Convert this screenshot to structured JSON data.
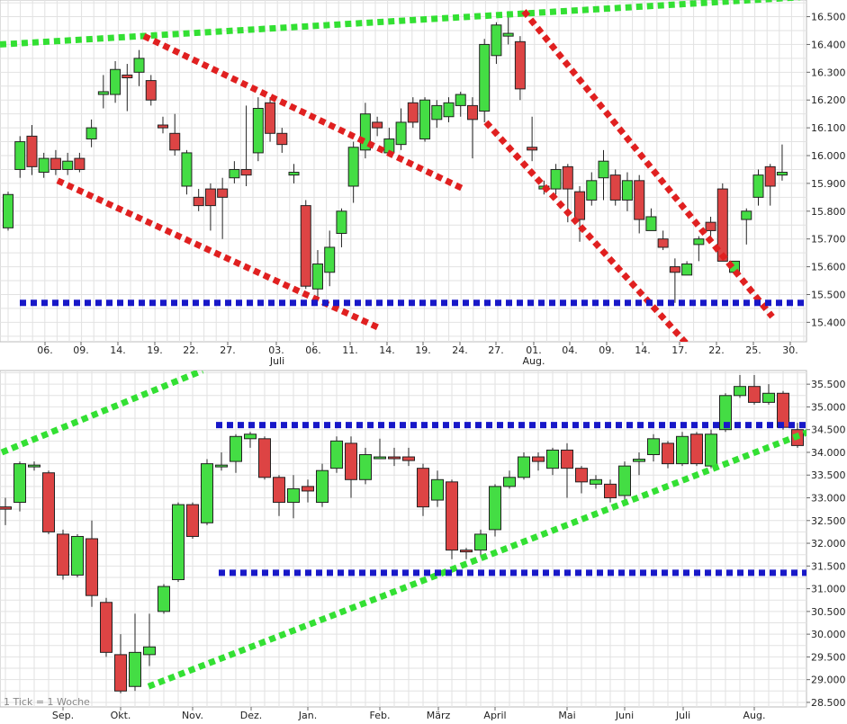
{
  "chart_data": [
    {
      "type": "candlestick",
      "title": "",
      "y_ticks": [
        "16.500",
        "16.400",
        "16.300",
        "16.200",
        "16.100",
        "16.000",
        "15.900",
        "15.800",
        "15.700",
        "15.600",
        "15.500",
        "15.400"
      ],
      "ylim": [
        15.33,
        16.56
      ],
      "x_labels": [
        "06.",
        "09.",
        "14.",
        "19.",
        "22.",
        "27.",
        "03.",
        "06.",
        "11.",
        "14.",
        "19.",
        "24.",
        "27.",
        "01.",
        "04.",
        "09.",
        "14.",
        "17.",
        "22.",
        "25.",
        "30."
      ],
      "month_labels": [
        "Juli",
        "Aug."
      ],
      "candles": [
        {
          "o": 15.74,
          "c": 15.86,
          "h": 15.87,
          "l": 15.73
        },
        {
          "o": 15.95,
          "c": 16.05,
          "h": 16.07,
          "l": 15.92
        },
        {
          "o": 16.07,
          "c": 15.96,
          "h": 16.11,
          "l": 15.93
        },
        {
          "o": 15.94,
          "c": 15.99,
          "h": 16.01,
          "l": 15.92
        },
        {
          "o": 15.99,
          "c": 15.95,
          "h": 16.02,
          "l": 15.93
        },
        {
          "o": 15.95,
          "c": 15.98,
          "h": 16.01,
          "l": 15.93
        },
        {
          "o": 15.99,
          "c": 15.95,
          "h": 16.01,
          "l": 15.94
        },
        {
          "o": 16.06,
          "c": 16.1,
          "h": 16.13,
          "l": 16.03
        },
        {
          "o": 16.22,
          "c": 16.23,
          "h": 16.29,
          "l": 16.17
        },
        {
          "o": 16.22,
          "c": 16.31,
          "h": 16.34,
          "l": 16.19
        },
        {
          "o": 16.29,
          "c": 16.28,
          "h": 16.33,
          "l": 16.16
        },
        {
          "o": 16.3,
          "c": 16.35,
          "h": 16.38,
          "l": 16.25
        },
        {
          "o": 16.27,
          "c": 16.2,
          "h": 16.29,
          "l": 16.18
        },
        {
          "o": 16.11,
          "c": 16.1,
          "h": 16.14,
          "l": 16.08
        },
        {
          "o": 16.08,
          "c": 16.02,
          "h": 16.15,
          "l": 16.0
        },
        {
          "o": 15.89,
          "c": 16.01,
          "h": 16.02,
          "l": 15.86
        },
        {
          "o": 15.85,
          "c": 15.82,
          "h": 15.88,
          "l": 15.8
        },
        {
          "o": 15.88,
          "c": 15.82,
          "h": 15.9,
          "l": 15.73
        },
        {
          "o": 15.88,
          "c": 15.85,
          "h": 15.92,
          "l": 15.7
        },
        {
          "o": 15.92,
          "c": 15.95,
          "h": 15.98,
          "l": 15.9
        },
        {
          "o": 15.95,
          "c": 15.93,
          "h": 16.18,
          "l": 15.89
        },
        {
          "o": 16.01,
          "c": 16.17,
          "h": 16.21,
          "l": 15.98
        },
        {
          "o": 16.19,
          "c": 16.08,
          "h": 16.21,
          "l": 16.05
        },
        {
          "o": 16.08,
          "c": 16.04,
          "h": 16.1,
          "l": 16.01
        },
        {
          "o": 15.93,
          "c": 15.94,
          "h": 15.97,
          "l": 15.9
        },
        {
          "o": 15.82,
          "c": 15.53,
          "h": 15.84,
          "l": 15.52
        },
        {
          "o": 15.52,
          "c": 15.61,
          "h": 15.66,
          "l": 15.48
        },
        {
          "o": 15.58,
          "c": 15.67,
          "h": 15.73,
          "l": 15.53
        },
        {
          "o": 15.72,
          "c": 15.8,
          "h": 15.81,
          "l": 15.67
        },
        {
          "o": 15.89,
          "c": 16.03,
          "h": 16.05,
          "l": 15.83
        },
        {
          "o": 16.02,
          "c": 16.15,
          "h": 16.19,
          "l": 15.99
        },
        {
          "o": 16.12,
          "c": 16.1,
          "h": 16.14,
          "l": 16.07
        },
        {
          "o": 16.01,
          "c": 16.06,
          "h": 16.1,
          "l": 16.0
        },
        {
          "o": 16.04,
          "c": 16.12,
          "h": 16.17,
          "l": 16.02
        },
        {
          "o": 16.19,
          "c": 16.12,
          "h": 16.21,
          "l": 16.1
        },
        {
          "o": 16.06,
          "c": 16.2,
          "h": 16.21,
          "l": 16.05
        },
        {
          "o": 16.13,
          "c": 16.18,
          "h": 16.2,
          "l": 16.1
        },
        {
          "o": 16.14,
          "c": 16.19,
          "h": 16.21,
          "l": 16.12
        },
        {
          "o": 16.18,
          "c": 16.22,
          "h": 16.23,
          "l": 16.14
        },
        {
          "o": 16.18,
          "c": 16.13,
          "h": 16.21,
          "l": 15.99
        },
        {
          "o": 16.16,
          "c": 16.4,
          "h": 16.42,
          "l": 16.12
        },
        {
          "o": 16.36,
          "c": 16.47,
          "h": 16.48,
          "l": 16.33
        },
        {
          "o": 16.43,
          "c": 16.44,
          "h": 16.52,
          "l": 16.4
        },
        {
          "o": 16.41,
          "c": 16.24,
          "h": 16.43,
          "l": 16.2
        },
        {
          "o": 16.03,
          "c": 16.02,
          "h": 16.14,
          "l": 15.98
        },
        {
          "o": 15.88,
          "c": 15.89,
          "h": 15.91,
          "l": 15.86
        },
        {
          "o": 15.88,
          "c": 15.95,
          "h": 15.97,
          "l": 15.86
        },
        {
          "o": 15.96,
          "c": 15.88,
          "h": 15.97,
          "l": 15.76
        },
        {
          "o": 15.87,
          "c": 15.77,
          "h": 15.89,
          "l": 15.69
        },
        {
          "o": 15.84,
          "c": 15.91,
          "h": 15.94,
          "l": 15.82
        },
        {
          "o": 15.92,
          "c": 15.98,
          "h": 16.02,
          "l": 15.84
        },
        {
          "o": 15.93,
          "c": 15.84,
          "h": 15.95,
          "l": 15.82
        },
        {
          "o": 15.84,
          "c": 15.91,
          "h": 15.94,
          "l": 15.8
        },
        {
          "o": 15.91,
          "c": 15.77,
          "h": 15.93,
          "l": 15.72
        },
        {
          "o": 15.73,
          "c": 15.78,
          "h": 15.81,
          "l": 15.73
        },
        {
          "o": 15.7,
          "c": 15.67,
          "h": 15.73,
          "l": 15.66
        },
        {
          "o": 15.6,
          "c": 15.58,
          "h": 15.63,
          "l": 15.47
        },
        {
          "o": 15.57,
          "c": 15.61,
          "h": 15.62,
          "l": 15.57
        },
        {
          "o": 15.68,
          "c": 15.7,
          "h": 15.71,
          "l": 15.62
        },
        {
          "o": 15.76,
          "c": 15.73,
          "h": 15.78,
          "l": 15.71
        },
        {
          "o": 15.88,
          "c": 15.62,
          "h": 15.9,
          "l": 15.62
        },
        {
          "o": 15.58,
          "c": 15.62,
          "h": 15.62,
          "l": 15.57
        },
        {
          "o": 15.77,
          "c": 15.8,
          "h": 15.81,
          "l": 15.68
        },
        {
          "o": 15.85,
          "c": 15.93,
          "h": 15.95,
          "l": 15.82
        },
        {
          "o": 15.96,
          "c": 15.89,
          "h": 15.97,
          "l": 15.82
        },
        {
          "o": 15.93,
          "c": 15.94,
          "h": 16.04,
          "l": 15.91
        }
      ],
      "trendlines": [
        {
          "color": "#33e033",
          "x1": 0,
          "y1": 16.4,
          "x2": 889,
          "y2": 16.57
        },
        {
          "color": "#e02020",
          "x1": 160,
          "y1": 16.43,
          "x2": 515,
          "y2": 15.88
        },
        {
          "color": "#e02020",
          "x1": 64,
          "y1": 15.91,
          "x2": 421,
          "y2": 15.38
        },
        {
          "color": "#e02020",
          "x1": 582,
          "y1": 16.52,
          "x2": 858,
          "y2": 15.42
        },
        {
          "color": "#e02020",
          "x1": 540,
          "y1": 16.12,
          "x2": 772,
          "y2": 15.29
        },
        {
          "color": "#1818c8",
          "x1": 22,
          "y1": 15.47,
          "x2": 898,
          "y2": 15.47
        }
      ]
    },
    {
      "type": "candlestick",
      "title": "",
      "y_ticks": [
        "35.500",
        "35.000",
        "34.500",
        "34.000",
        "33.500",
        "33.000",
        "32.500",
        "32.000",
        "31.500",
        "31.000",
        "30.500",
        "30.000",
        "29.500",
        "29.000",
        "28.500"
      ],
      "ylim": [
        28.4,
        35.8
      ],
      "x_labels": [
        "Sep.",
        "Okt.",
        "Nov.",
        "Dez.",
        "Jan.",
        "Feb.",
        "März",
        "April",
        "Mai",
        "Juni",
        "Juli",
        "Aug."
      ],
      "note": "1 Tick = 1 Woche",
      "candles": [
        {
          "o": 32.8,
          "c": 32.75,
          "h": 33.0,
          "l": 32.4
        },
        {
          "o": 32.9,
          "c": 33.75,
          "h": 33.8,
          "l": 32.7
        },
        {
          "o": 33.7,
          "c": 33.72,
          "h": 33.8,
          "l": 33.6
        },
        {
          "o": 33.55,
          "c": 32.25,
          "h": 33.6,
          "l": 32.2
        },
        {
          "o": 32.2,
          "c": 31.3,
          "h": 32.3,
          "l": 31.2
        },
        {
          "o": 31.3,
          "c": 32.15,
          "h": 32.2,
          "l": 31.25
        },
        {
          "o": 32.1,
          "c": 30.85,
          "h": 32.5,
          "l": 30.6
        },
        {
          "o": 30.7,
          "c": 29.6,
          "h": 30.8,
          "l": 29.5
        },
        {
          "o": 29.55,
          "c": 28.75,
          "h": 30.0,
          "l": 28.7
        },
        {
          "o": 28.85,
          "c": 29.6,
          "h": 30.45,
          "l": 28.75
        },
        {
          "o": 29.55,
          "c": 29.72,
          "h": 30.45,
          "l": 29.3
        },
        {
          "o": 30.5,
          "c": 31.05,
          "h": 31.1,
          "l": 30.45
        },
        {
          "o": 31.2,
          "c": 32.85,
          "h": 32.9,
          "l": 31.15
        },
        {
          "o": 32.85,
          "c": 32.15,
          "h": 32.9,
          "l": 32.1
        },
        {
          "o": 32.45,
          "c": 33.75,
          "h": 33.85,
          "l": 32.4
        },
        {
          "o": 33.7,
          "c": 33.72,
          "h": 34.0,
          "l": 33.6
        },
        {
          "o": 33.8,
          "c": 34.35,
          "h": 34.4,
          "l": 33.55
        },
        {
          "o": 34.3,
          "c": 34.4,
          "h": 34.45,
          "l": 34.1
        },
        {
          "o": 34.3,
          "c": 33.45,
          "h": 34.35,
          "l": 33.4
        },
        {
          "o": 33.45,
          "c": 32.9,
          "h": 33.5,
          "l": 32.6
        },
        {
          "o": 32.9,
          "c": 33.2,
          "h": 33.5,
          "l": 32.55
        },
        {
          "o": 33.25,
          "c": 33.15,
          "h": 33.4,
          "l": 32.9
        },
        {
          "o": 32.9,
          "c": 33.6,
          "h": 33.75,
          "l": 32.8
        },
        {
          "o": 33.65,
          "c": 34.25,
          "h": 34.35,
          "l": 33.55
        },
        {
          "o": 34.2,
          "c": 33.4,
          "h": 34.35,
          "l": 33.0
        },
        {
          "o": 33.4,
          "c": 33.95,
          "h": 34.1,
          "l": 33.3
        },
        {
          "o": 33.9,
          "c": 33.9,
          "h": 34.3,
          "l": 33.85
        },
        {
          "o": 33.9,
          "c": 33.88,
          "h": 34.1,
          "l": 33.7
        },
        {
          "o": 33.9,
          "c": 33.82,
          "h": 34.1,
          "l": 33.7
        },
        {
          "o": 33.65,
          "c": 32.8,
          "h": 33.75,
          "l": 32.6
        },
        {
          "o": 32.95,
          "c": 33.4,
          "h": 33.6,
          "l": 32.8
        },
        {
          "o": 33.35,
          "c": 31.85,
          "h": 33.4,
          "l": 31.65
        },
        {
          "o": 31.85,
          "c": 31.83,
          "h": 31.9,
          "l": 31.65
        },
        {
          "o": 31.85,
          "c": 32.2,
          "h": 32.3,
          "l": 31.7
        },
        {
          "o": 32.3,
          "c": 33.25,
          "h": 33.3,
          "l": 32.15
        },
        {
          "o": 33.25,
          "c": 33.45,
          "h": 33.6,
          "l": 33.2
        },
        {
          "o": 33.45,
          "c": 33.9,
          "h": 34.0,
          "l": 33.4
        },
        {
          "o": 33.9,
          "c": 33.8,
          "h": 34.0,
          "l": 33.6
        },
        {
          "o": 33.65,
          "c": 34.05,
          "h": 34.1,
          "l": 33.5
        },
        {
          "o": 34.05,
          "c": 33.65,
          "h": 34.2,
          "l": 33.0
        },
        {
          "o": 33.65,
          "c": 33.35,
          "h": 33.7,
          "l": 33.1
        },
        {
          "o": 33.3,
          "c": 33.4,
          "h": 33.5,
          "l": 33.2
        },
        {
          "o": 33.3,
          "c": 33.0,
          "h": 33.4,
          "l": 32.9
        },
        {
          "o": 33.05,
          "c": 33.7,
          "h": 33.8,
          "l": 32.85
        },
        {
          "o": 33.8,
          "c": 33.85,
          "h": 34.0,
          "l": 33.5
        },
        {
          "o": 33.95,
          "c": 34.3,
          "h": 34.4,
          "l": 33.8
        },
        {
          "o": 34.2,
          "c": 33.75,
          "h": 34.25,
          "l": 33.65
        },
        {
          "o": 33.75,
          "c": 34.35,
          "h": 34.45,
          "l": 33.7
        },
        {
          "o": 34.4,
          "c": 33.75,
          "h": 34.45,
          "l": 33.7
        },
        {
          "o": 33.7,
          "c": 34.4,
          "h": 34.5,
          "l": 33.65
        },
        {
          "o": 34.5,
          "c": 35.25,
          "h": 35.3,
          "l": 34.45
        },
        {
          "o": 35.25,
          "c": 35.45,
          "h": 35.7,
          "l": 35.2
        },
        {
          "o": 35.45,
          "c": 35.1,
          "h": 35.7,
          "l": 35.05
        },
        {
          "o": 35.1,
          "c": 35.3,
          "h": 35.5,
          "l": 35.05
        },
        {
          "o": 35.3,
          "c": 34.55,
          "h": 35.35,
          "l": 34.5
        },
        {
          "o": 34.5,
          "c": 34.15,
          "h": 34.65,
          "l": 34.1
        }
      ],
      "trendlines": [
        {
          "color": "#33e033",
          "x1": 2,
          "y1": 34.0,
          "x2": 225,
          "y2": 35.8
        },
        {
          "color": "#33e033",
          "x1": 165,
          "y1": 28.85,
          "x2": 898,
          "y2": 34.45
        },
        {
          "color": "#1818c8",
          "x1": 240,
          "y1": 34.6,
          "x2": 898,
          "y2": 34.6
        },
        {
          "color": "#1818c8",
          "x1": 243,
          "y1": 31.35,
          "x2": 898,
          "y2": 31.35
        }
      ]
    }
  ]
}
